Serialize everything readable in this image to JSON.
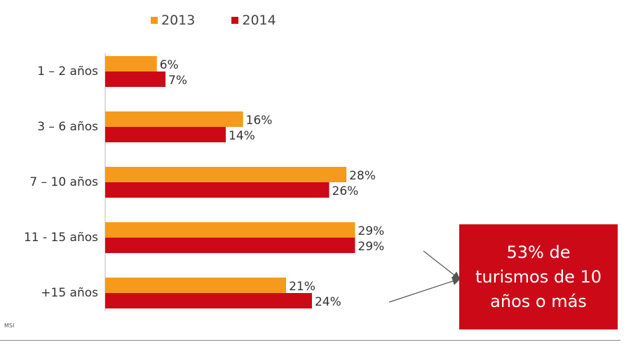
{
  "chart_data": {
    "type": "bar",
    "orientation": "horizontal",
    "categories": [
      "1 – 2 años",
      "3 – 6 años",
      "7 – 10 años",
      "11 - 15 años",
      "+15 años"
    ],
    "series": [
      {
        "name": "2013",
        "values": [
          6,
          16,
          28,
          29,
          21
        ],
        "labels": [
          "6%",
          "16%",
          "28%",
          "29%",
          "21%"
        ],
        "color": "#f59a1c"
      },
      {
        "name": "2014",
        "values": [
          7,
          14,
          26,
          29,
          24
        ],
        "labels": [
          "7%",
          "14%",
          "26%",
          "29%",
          "24%"
        ],
        "color": "#cc0a17"
      }
    ],
    "xlim": [
      0,
      38
    ],
    "grid": false,
    "legend_position": "top"
  },
  "callout": {
    "text": "53% de turismos de 10 años o más"
  },
  "source": "MSI"
}
